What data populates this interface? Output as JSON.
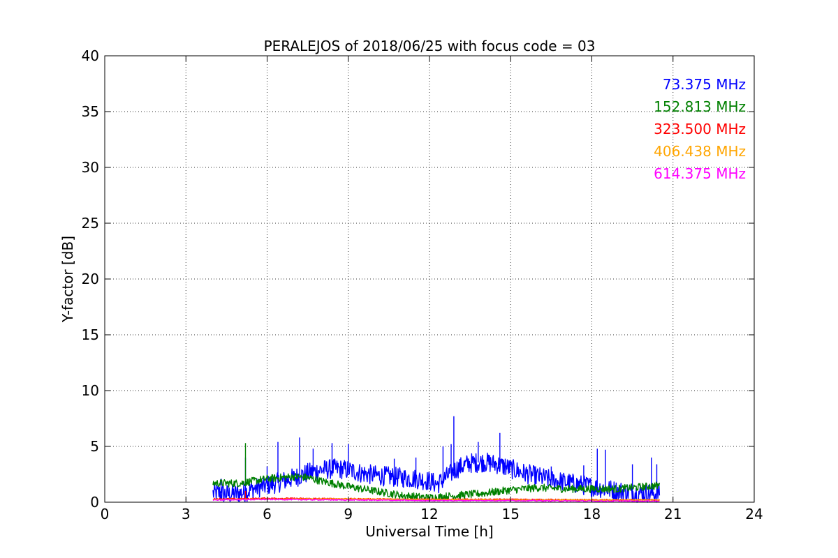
{
  "chart_data": {
    "type": "line",
    "title": "PERALEJOS of 2018/06/25 with focus code = 03",
    "xlabel": "Universal Time [h]",
    "ylabel": "Y-factor [dB]",
    "xlim": [
      0,
      24
    ],
    "ylim": [
      0,
      40
    ],
    "xticks": [
      0,
      3,
      6,
      9,
      12,
      15,
      18,
      21,
      24
    ],
    "yticks": [
      0,
      5,
      10,
      15,
      20,
      25,
      30,
      35,
      40
    ],
    "xtick_labels": [
      "0",
      "3",
      "6",
      "9",
      "12",
      "15",
      "18",
      "21",
      "24"
    ],
    "ytick_labels": [
      "0",
      "5",
      "10",
      "15",
      "20",
      "25",
      "30",
      "35",
      "40"
    ],
    "grid": true,
    "legend_position": "top-right",
    "series": [
      {
        "name": "73.375 MHz",
        "color": "#0000ff",
        "noise": 0.9,
        "x": [
          4.0,
          4.3,
          4.6,
          5.0,
          5.2,
          5.5,
          6.0,
          6.5,
          7.0,
          7.5,
          8.0,
          8.5,
          9.0,
          9.5,
          10.0,
          10.5,
          11.0,
          11.5,
          12.0,
          12.3,
          12.6,
          13.0,
          13.5,
          14.0,
          14.5,
          15.0,
          15.5,
          16.0,
          16.5,
          17.0,
          17.5,
          18.0,
          18.5,
          19.0,
          19.5,
          20.0,
          20.5
        ],
        "y": [
          0.8,
          0.8,
          0.7,
          0.8,
          0.9,
          1.2,
          1.5,
          1.8,
          2.2,
          2.6,
          2.9,
          3.0,
          2.9,
          2.6,
          2.4,
          2.3,
          2.2,
          2.1,
          1.9,
          1.6,
          2.2,
          3.0,
          3.5,
          3.6,
          3.4,
          3.0,
          2.6,
          2.3,
          2.0,
          1.8,
          1.6,
          1.4,
          1.2,
          1.0,
          0.9,
          0.8,
          0.8
        ],
        "spikes": [
          [
            4.3,
            2.1
          ],
          [
            5.2,
            4.0
          ],
          [
            6.0,
            3.2
          ],
          [
            6.4,
            5.4
          ],
          [
            7.2,
            5.8
          ],
          [
            7.7,
            4.8
          ],
          [
            8.4,
            5.3
          ],
          [
            9.0,
            5.2
          ],
          [
            10.7,
            3.9
          ],
          [
            11.5,
            4.0
          ],
          [
            12.5,
            5.0
          ],
          [
            12.8,
            5.2
          ],
          [
            12.9,
            7.7
          ],
          [
            13.8,
            5.4
          ],
          [
            14.6,
            6.2
          ],
          [
            14.8,
            3.9
          ],
          [
            16.5,
            3.2
          ],
          [
            17.7,
            3.3
          ],
          [
            18.2,
            4.8
          ],
          [
            18.5,
            4.7
          ],
          [
            19.5,
            3.4
          ],
          [
            20.2,
            4.0
          ],
          [
            20.4,
            3.4
          ]
        ]
      },
      {
        "name": "152.813 MHz",
        "color": "#008000",
        "noise": 0.35,
        "x": [
          4.0,
          5.0,
          6.0,
          7.0,
          7.5,
          8.0,
          9.0,
          10.0,
          11.0,
          12.0,
          12.5,
          13.0,
          14.0,
          15.0,
          16.0,
          17.0,
          18.0,
          19.0,
          20.0,
          20.5
        ],
        "y": [
          1.7,
          1.7,
          2.1,
          2.3,
          2.2,
          1.9,
          1.4,
          1.0,
          0.6,
          0.4,
          0.5,
          0.6,
          0.8,
          1.1,
          1.3,
          1.2,
          1.2,
          1.2,
          1.4,
          1.5
        ],
        "spikes": [
          [
            5.2,
            5.3
          ]
        ]
      },
      {
        "name": "323.500 MHz",
        "color": "#ff0000",
        "noise": 0.06,
        "x": [
          4.0,
          5.0,
          6.0,
          9.0,
          12.0,
          15.0,
          18.0,
          20.5
        ],
        "y": [
          0.3,
          0.3,
          0.35,
          0.3,
          0.25,
          0.25,
          0.2,
          0.2
        ],
        "spikes": [
          [
            5.2,
            1.0
          ]
        ]
      },
      {
        "name": "406.438 MHz",
        "color": "#ffa500",
        "noise": 0.04,
        "x": [
          4.0,
          8.0,
          12.0,
          16.0,
          20.5
        ],
        "y": [
          0.25,
          0.3,
          0.25,
          0.2,
          0.2
        ],
        "spikes": []
      },
      {
        "name": "614.375 MHz",
        "color": "#ff00ff",
        "noise": 0.05,
        "x": [
          4.0,
          6.0,
          9.0,
          12.0,
          15.0,
          18.0,
          20.5
        ],
        "y": [
          0.2,
          0.25,
          0.2,
          0.15,
          0.15,
          0.1,
          0.1
        ],
        "spikes": []
      }
    ]
  }
}
